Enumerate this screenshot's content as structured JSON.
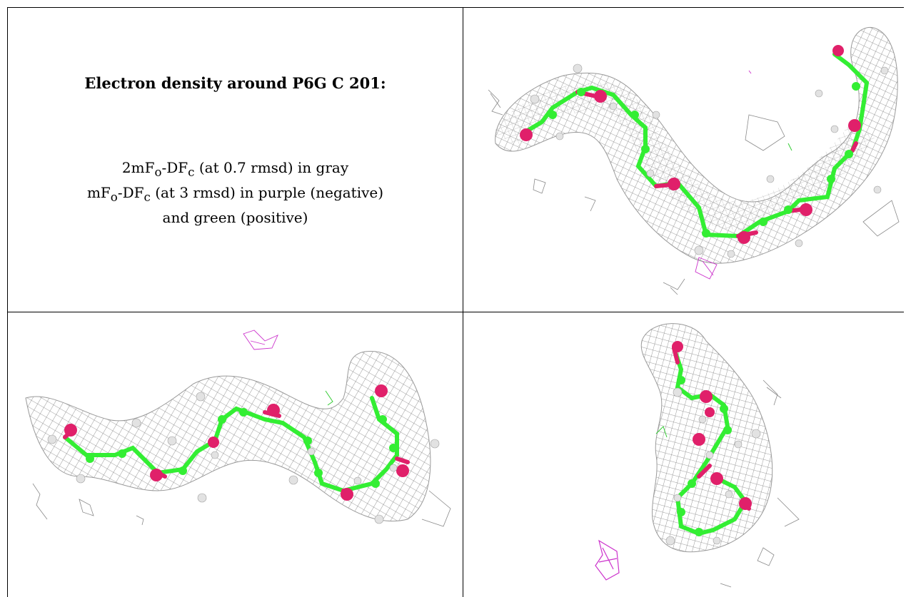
{
  "caption": {
    "title": "Electron density around P6G C 201:",
    "line1_pre": "2mF",
    "line1_sub1": "o",
    "line1_mid": "-DF",
    "line1_sub2": "c",
    "line1_post": " (at 0.7 rmsd) in gray",
    "line2_pre": "mF",
    "line2_sub1": "o",
    "line2_mid": "-DF",
    "line2_sub2": "c",
    "line2_post": " (at 3 rmsd) in purple (negative)",
    "line3": "and green (positive)"
  },
  "panels": [
    {
      "name": "view-top-right",
      "description_colors": {
        "mesh": "#8a8a8a",
        "carbon": "#33ee33",
        "oxygen": "#e0206a",
        "hydrogen": "#d9d9d9",
        "negative": "#cc33cc"
      }
    },
    {
      "name": "view-bottom-left"
    },
    {
      "name": "view-bottom-right"
    }
  ]
}
